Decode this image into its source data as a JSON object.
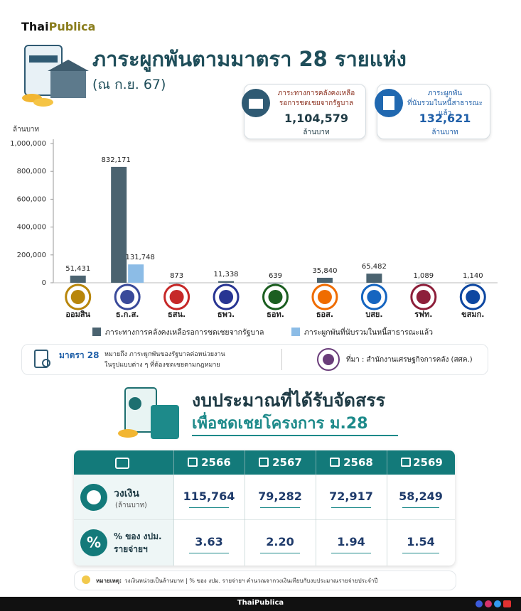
{
  "brand": [
    "Thai",
    "Publica"
  ],
  "header": {
    "title": "ภาระผูกพันตามมาตรา 28 รายแห่ง",
    "subtitle": "(ณ ก.ย. 67)"
  },
  "summary_cards": [
    {
      "label": [
        "ภาระทางการคลังคงเหลือ",
        "รอการชดเชยจากรัฐบาล"
      ],
      "value": "1,104,579",
      "unit": "ล้านบาท"
    },
    {
      "label": [
        "ภาระผูกพัน",
        "ที่นับรวมในหนี้สาธารณะแล้ว"
      ],
      "value": "132,621",
      "unit": "ล้านบาท"
    }
  ],
  "chart_data": {
    "type": "bar",
    "y_label": "ล้านบาท",
    "categories": [
      "ออมสิน",
      "ธ.ก.ส.",
      "ธสน.",
      "ธพว.",
      "ธอท.",
      "ธอส.",
      "บสย.",
      "รฟท.",
      "ขสมก."
    ],
    "logo_colors": [
      "#b8860b",
      "#3a4a9a",
      "#c62828",
      "#283593",
      "#1b5e20",
      "#ef6c00",
      "#1565c0",
      "#8d1f3a",
      "#0d47a1"
    ],
    "series": [
      {
        "name": "ภาระทางการคลังคงเหลือรอการชดเชยจากรัฐบาล",
        "color": "#4b6370",
        "values": [
          51431,
          832171,
          873,
          11338,
          639,
          35840,
          65482,
          1089,
          1140
        ],
        "value_labels": [
          "51,431",
          "832,171",
          "873",
          "11,338",
          "639",
          "35,840",
          "65,482",
          "1,089",
          "1,140"
        ]
      },
      {
        "name": "ภาระผูกพันที่นับรวมในหนี้สาธารณะแล้ว",
        "color": "#8cbce6",
        "values": [
          null,
          131748,
          null,
          null,
          null,
          null,
          null,
          null,
          null
        ],
        "value_labels": [
          null,
          "131,748",
          null,
          null,
          null,
          null,
          null,
          null,
          null
        ]
      }
    ],
    "ylim": [
      0,
      1000000
    ],
    "yticks": [
      0,
      {
        "value": 200000,
        "label": "200,000"
      },
      {
        "value": 400000,
        "label": "400,000"
      },
      {
        "value": 600000,
        "label": "600,000"
      },
      {
        "value": 800000,
        "label": "800,000"
      },
      {
        "value": 1000000,
        "label": "1,000,000"
      }
    ],
    "grid": false
  },
  "note": {
    "term": "มาตรา 28",
    "lines": [
      "หมายถึง ภาระผูกพันของรัฐบาลต่อหน่วยงาน",
      "ในรูปแบบต่าง ๆ ที่ต้องชดเชยตามกฎหมาย"
    ]
  },
  "source": "ที่มา : สำนักงานเศรษฐกิจการคลัง (สศค.)",
  "budget": {
    "title": [
      "งบประมาณที่ได้รับจัดสรร",
      "เพื่อชดเชยโครงการ ม.28"
    ],
    "table": {
      "columns": [
        "2566",
        "2567",
        "2568",
        "2569"
      ],
      "rows": [
        {
          "label": [
            "วงเงิน",
            "(ล้านบาท)"
          ],
          "values": [
            "115,764",
            "79,282",
            "72,917",
            "58,249"
          ]
        },
        {
          "symbol": "%",
          "label": [
            "% ของ งปม.",
            "รายจ่ายฯ"
          ],
          "values": [
            "3.63",
            "2.20",
            "1.94",
            "1.54"
          ]
        }
      ]
    }
  },
  "footnote": {
    "label": "หมายเหตุ:",
    "text": "วงเงินหน่วยเป็นล้านบาท | % ของ งปม. รายจ่ายฯ คำนวณจากวงเงินเทียบกับงบประมาณรายจ่ายประจำปี"
  },
  "footer": "ThaiPublica"
}
